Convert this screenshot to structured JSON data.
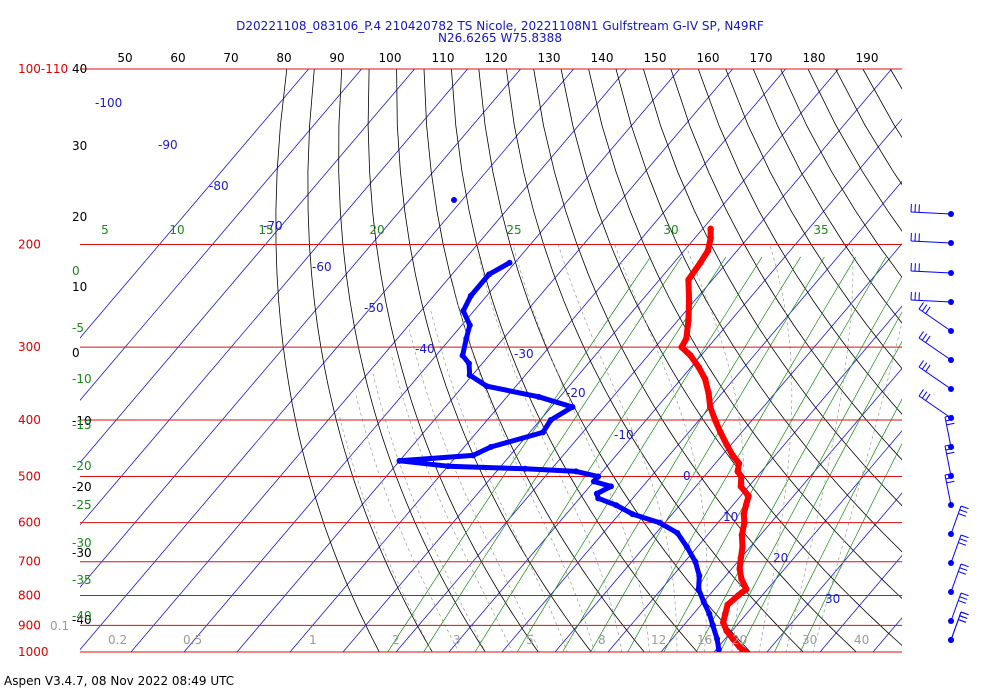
{
  "chart_data": {
    "type": "skew-t log-p sounding",
    "title_line1": "D20221108_083106_P.4 210420782 TS Nicole, 20221108N1 Gulfstream G-IV SP, N49RF",
    "title_line2": "N26.6265 W75.8388",
    "footer": "Aspen V3.4.7, 08 Nov 2022  08:49 UTC",
    "pressure_levels": [
      {
        "label": "100-110",
        "p": 100
      },
      {
        "label": "200",
        "p": 200
      },
      {
        "label": "300",
        "p": 300
      },
      {
        "label": "400",
        "p": 400
      },
      {
        "label": "500",
        "p": 500
      },
      {
        "label": "600",
        "p": 600
      },
      {
        "label": "700",
        "p": 700
      },
      {
        "label": "800",
        "p": 800
      },
      {
        "label": "900",
        "p": 900
      },
      {
        "label": "1000",
        "p": 1000
      }
    ],
    "theta_top_labels": [
      "50",
      "60",
      "70",
      "80",
      "90",
      "100",
      "110",
      "120",
      "130",
      "140",
      "150",
      "160",
      "170",
      "180",
      "190"
    ],
    "left_temp_labels": [
      "40",
      "30",
      "20",
      "10",
      "0",
      "-10",
      "-20",
      "-30",
      "-40"
    ],
    "isotherm_labels": [
      "-100",
      "-90",
      "-80",
      "-70",
      "-60",
      "-50",
      "-40",
      "-30",
      "-20",
      "-10",
      "0",
      "10",
      "20",
      "30"
    ],
    "mixing_ratio_top_labels": [
      "5",
      "10",
      "15",
      "20",
      "25",
      "30",
      "35"
    ],
    "theta_e_left_labels": [
      "0",
      "-5",
      "-10",
      "-15",
      "-20",
      "-25",
      "-30",
      "-35",
      "-40"
    ],
    "mixing_ratio_bottom_labels": [
      "0.1",
      "0.2",
      "0.5",
      "1",
      "2",
      "3",
      "5",
      "8",
      "12",
      "16",
      "20",
      "30",
      "40"
    ],
    "temperature_profile": [
      {
        "p": 188,
        "t": -48.5
      },
      {
        "p": 195,
        "t": -47.0
      },
      {
        "p": 205,
        "t": -45.5
      },
      {
        "p": 215,
        "t": -45.0
      },
      {
        "p": 230,
        "t": -44.5
      },
      {
        "p": 250,
        "t": -41.0
      },
      {
        "p": 270,
        "t": -38.0
      },
      {
        "p": 290,
        "t": -35.5
      },
      {
        "p": 300,
        "t": -35.0
      },
      {
        "p": 310,
        "t": -32.0
      },
      {
        "p": 325,
        "t": -28.5
      },
      {
        "p": 340,
        "t": -25.5
      },
      {
        "p": 360,
        "t": -22.5
      },
      {
        "p": 380,
        "t": -20.0
      },
      {
        "p": 400,
        "t": -17.0
      },
      {
        "p": 420,
        "t": -14.0
      },
      {
        "p": 440,
        "t": -11.0
      },
      {
        "p": 460,
        "t": -8.0
      },
      {
        "p": 475,
        "t": -5.5
      },
      {
        "p": 490,
        "t": -4.5
      },
      {
        "p": 500,
        "t": -3.0
      },
      {
        "p": 520,
        "t": -1.5
      },
      {
        "p": 540,
        "t": 1.5
      },
      {
        "p": 560,
        "t": 2.5
      },
      {
        "p": 580,
        "t": 3.5
      },
      {
        "p": 600,
        "t": 5.0
      },
      {
        "p": 630,
        "t": 6.5
      },
      {
        "p": 660,
        "t": 8.5
      },
      {
        "p": 690,
        "t": 10.0
      },
      {
        "p": 720,
        "t": 11.5
      },
      {
        "p": 750,
        "t": 13.5
      },
      {
        "p": 780,
        "t": 16.0
      },
      {
        "p": 800,
        "t": 15.5
      },
      {
        "p": 830,
        "t": 15.0
      },
      {
        "p": 860,
        "t": 16.0
      },
      {
        "p": 890,
        "t": 17.0
      },
      {
        "p": 920,
        "t": 19.0
      },
      {
        "p": 950,
        "t": 21.5
      },
      {
        "p": 980,
        "t": 24.0
      },
      {
        "p": 1000,
        "t": 26.0
      }
    ],
    "dewpoint_profile": [
      {
        "p": 215,
        "t": -81.0
      },
      {
        "p": 225,
        "t": -83.0
      },
      {
        "p": 245,
        "t": -83.0
      },
      {
        "p": 260,
        "t": -82.0
      },
      {
        "p": 275,
        "t": -78.5
      },
      {
        "p": 290,
        "t": -77.0
      },
      {
        "p": 310,
        "t": -75.0
      },
      {
        "p": 320,
        "t": -72.5
      },
      {
        "p": 335,
        "t": -70.5
      },
      {
        "p": 350,
        "t": -65.5
      },
      {
        "p": 365,
        "t": -54.0
      },
      {
        "p": 380,
        "t": -46.0
      },
      {
        "p": 400,
        "t": -48.0
      },
      {
        "p": 420,
        "t": -47.5
      },
      {
        "p": 445,
        "t": -55.0
      },
      {
        "p": 460,
        "t": -57.0
      },
      {
        "p": 470,
        "t": -70.0
      },
      {
        "p": 480,
        "t": -60.0
      },
      {
        "p": 485,
        "t": -45.0
      },
      {
        "p": 490,
        "t": -35.0
      },
      {
        "p": 500,
        "t": -30.0
      },
      {
        "p": 510,
        "t": -30.0
      },
      {
        "p": 520,
        "t": -26.0
      },
      {
        "p": 535,
        "t": -27.5
      },
      {
        "p": 545,
        "t": -26.5
      },
      {
        "p": 560,
        "t": -22.0
      },
      {
        "p": 580,
        "t": -17.5
      },
      {
        "p": 600,
        "t": -11.0
      },
      {
        "p": 625,
        "t": -6.0
      },
      {
        "p": 660,
        "t": -2.0
      },
      {
        "p": 700,
        "t": 2.0
      },
      {
        "p": 740,
        "t": 5.0
      },
      {
        "p": 780,
        "t": 7.0
      },
      {
        "p": 820,
        "t": 10.0
      },
      {
        "p": 860,
        "t": 13.0
      },
      {
        "p": 900,
        "t": 15.5
      },
      {
        "p": 950,
        "t": 18.5
      },
      {
        "p": 990,
        "t": 20.5
      }
    ],
    "wind_barbs_count": 17,
    "grid": true
  },
  "colors": {
    "title": "#1515c8",
    "isobar": "#d81010",
    "temperature": "#ff0000",
    "dewpoint": "#0000ff",
    "isotherm": "#1a1ad0",
    "dry_adiabat": "#000000",
    "mixing_ratio": "#1a8a1a",
    "moist_adiabat": "#9a9a9a"
  }
}
